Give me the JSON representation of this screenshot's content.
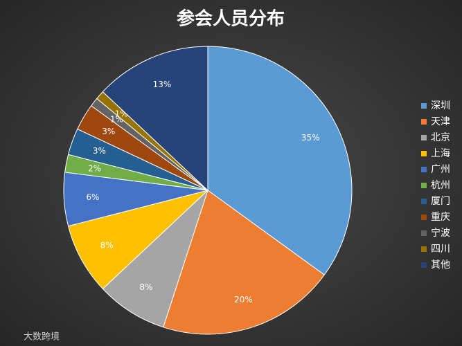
{
  "chart_data": {
    "type": "pie",
    "title": "参会人员分布",
    "categories": [
      "深圳",
      "天津",
      "北京",
      "上海",
      "广州",
      "杭州",
      "厦门",
      "重庆",
      "宁波",
      "四川",
      "其他"
    ],
    "values": [
      35,
      20,
      8,
      8,
      6,
      2,
      3,
      3,
      1,
      1,
      13
    ],
    "value_labels": [
      "35%",
      "20%",
      "8%",
      "8%",
      "6%",
      "2%",
      "3%",
      "3%",
      "1%",
      "1%",
      "13%"
    ],
    "colors": [
      "#5b9bd5",
      "#ed7d31",
      "#a5a5a5",
      "#ffc000",
      "#4472c4",
      "#70ad47",
      "#255e91",
      "#9e480e",
      "#636363",
      "#997300",
      "#264478"
    ],
    "legend": "right"
  },
  "watermark": "大数跨境"
}
